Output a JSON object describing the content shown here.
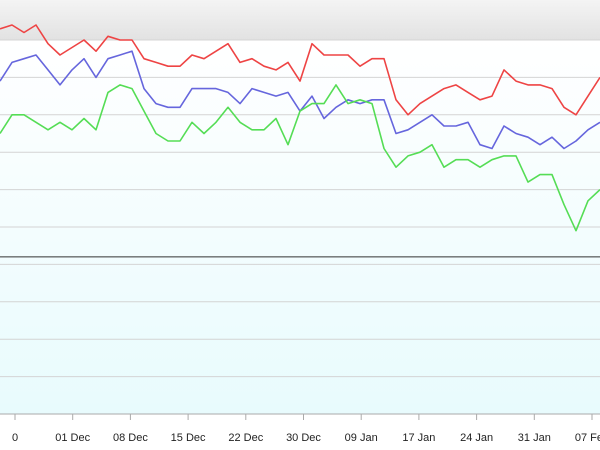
{
  "colors": {
    "grid": "#d4d4d4",
    "reference_line": "#333333",
    "plot_bg_top": "#ffffff",
    "plot_bg_bottom": "#e8fbfd",
    "axis_line": "#aaaaaa"
  },
  "chart_data": {
    "type": "line",
    "title": "",
    "xlabel": "",
    "ylabel": "",
    "x_tick_labels": [
      "0",
      "01 Dec",
      "08 Dec",
      "15 Dec",
      "22 Dec",
      "30 Dec",
      "09 Jan",
      "17 Jan",
      "24 Jan",
      "31 Jan",
      "07 Feb"
    ],
    "grid": true,
    "legend": "none",
    "ylim": [
      0,
      10
    ],
    "reference_y": 4.2,
    "series": [
      {
        "color": "#ee4444",
        "values": [
          10.3,
          10.4,
          10.2,
          10.4,
          9.9,
          9.6,
          9.8,
          10.0,
          9.7,
          10.1,
          10.0,
          10.0,
          9.5,
          9.4,
          9.3,
          9.3,
          9.6,
          9.5,
          9.7,
          9.9,
          9.4,
          9.5,
          9.3,
          9.2,
          9.4,
          8.9,
          9.9,
          9.6,
          9.6,
          9.6,
          9.3,
          9.5,
          9.5,
          8.4,
          8.0,
          8.3,
          8.5,
          8.7,
          8.8,
          8.6,
          8.4,
          8.5,
          9.2,
          8.9,
          8.8,
          8.8,
          8.7,
          8.2,
          8.0,
          8.5,
          9.0
        ]
      },
      {
        "color": "#6666dd",
        "values": [
          8.9,
          9.4,
          9.5,
          9.6,
          9.2,
          8.8,
          9.2,
          9.5,
          9.0,
          9.5,
          9.6,
          9.7,
          8.7,
          8.3,
          8.2,
          8.2,
          8.7,
          8.7,
          8.7,
          8.6,
          8.3,
          8.7,
          8.6,
          8.5,
          8.6,
          8.1,
          8.5,
          7.9,
          8.2,
          8.4,
          8.3,
          8.4,
          8.4,
          7.5,
          7.6,
          7.8,
          8.0,
          7.7,
          7.7,
          7.8,
          7.2,
          7.1,
          7.7,
          7.5,
          7.4,
          7.2,
          7.4,
          7.1,
          7.3,
          7.6,
          7.8
        ]
      },
      {
        "color": "#55dd55",
        "values": [
          7.5,
          8.0,
          8.0,
          7.8,
          7.6,
          7.8,
          7.6,
          7.9,
          7.6,
          8.6,
          8.8,
          8.7,
          8.1,
          7.5,
          7.3,
          7.3,
          7.8,
          7.5,
          7.8,
          8.2,
          7.8,
          7.6,
          7.6,
          7.9,
          7.2,
          8.1,
          8.3,
          8.3,
          8.8,
          8.3,
          8.4,
          8.3,
          7.1,
          6.6,
          6.9,
          7.0,
          7.2,
          6.6,
          6.8,
          6.8,
          6.6,
          6.8,
          6.9,
          6.9,
          6.2,
          6.4,
          6.4,
          5.6,
          4.9,
          5.7,
          6.0
        ]
      }
    ]
  }
}
